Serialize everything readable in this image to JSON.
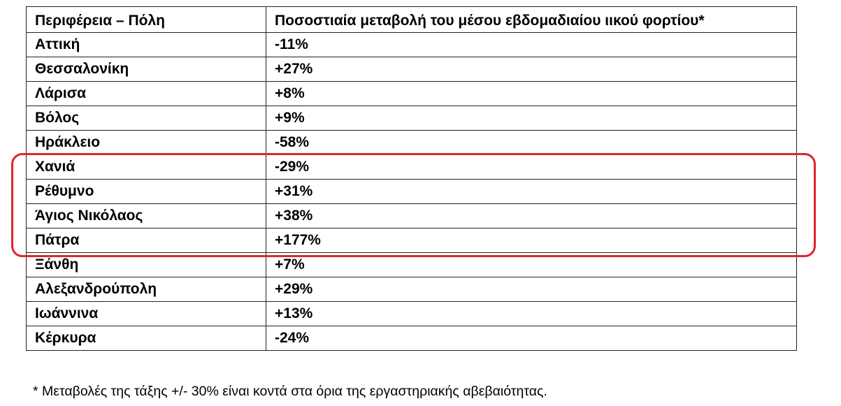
{
  "table": {
    "headers": [
      "Περιφέρεια – Πόλη",
      "Ποσοστιαία μεταβολή του μέσου εβδομαδιαίου ιικού φορτίου*"
    ],
    "rows": [
      {
        "city": "Αττική",
        "change": "-11%"
      },
      {
        "city": "Θεσσαλονίκη",
        "change": "+27%"
      },
      {
        "city": "Λάρισα",
        "change": "+8%"
      },
      {
        "city": "Βόλος",
        "change": "+9%"
      },
      {
        "city": "Ηράκλειο",
        "change": "-58%"
      },
      {
        "city": "Χανιά",
        "change": "-29%"
      },
      {
        "city": "Ρέθυμνο",
        "change": "+31%"
      },
      {
        "city": "Άγιος Νικόλαος",
        "change": "+38%"
      },
      {
        "city": "Πάτρα",
        "change": "+177%"
      },
      {
        "city": "Ξάνθη",
        "change": "+7%"
      },
      {
        "city": "Αλεξανδρούπολη",
        "change": "+29%"
      },
      {
        "city": "Ιωάννινα",
        "change": "+13%"
      },
      {
        "city": "Κέρκυρα",
        "change": "-24%"
      }
    ]
  },
  "highlight": {
    "color": "#e0252f"
  },
  "footnote": "* Μεταβολές της τάξης +/- 30% είναι κοντά στα όρια της εργαστηριακής αβεβαιότητας."
}
